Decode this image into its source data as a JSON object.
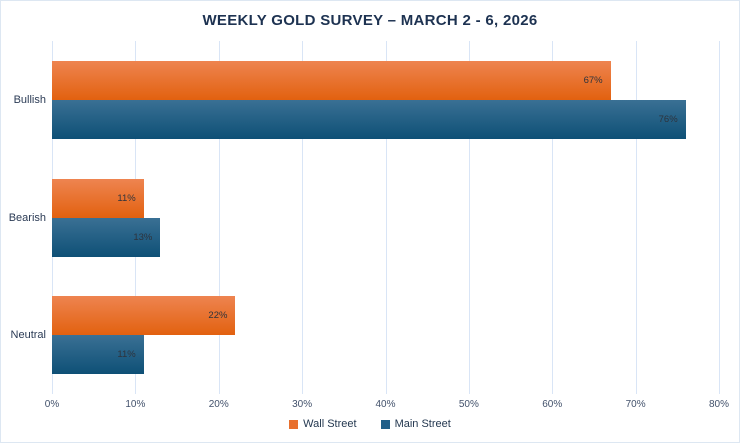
{
  "title": "WEEKLY GOLD SURVEY – MARCH 2 - 6, 2026",
  "chart_data": {
    "type": "bar",
    "orientation": "horizontal",
    "title": "WEEKLY GOLD SURVEY – MARCH 2 - 6, 2026",
    "categories": [
      "Bullish",
      "Bearish",
      "Neutral"
    ],
    "series": [
      {
        "name": "Wall Street",
        "values": [
          67,
          11,
          22
        ],
        "color_top": "#ee8450",
        "color_bottom": "#e2610f",
        "legend_color": "#e8702e"
      },
      {
        "name": "Main Street",
        "values": [
          76,
          13,
          11
        ],
        "color_top": "#3a7094",
        "color_bottom": "#0e5076",
        "legend_color": "#1f5e88"
      }
    ],
    "data_labels": [
      [
        "67%",
        "11%",
        "22%"
      ],
      [
        "76%",
        "13%",
        "11%"
      ]
    ],
    "value_suffix": "%",
    "xlim": [
      0,
      80
    ],
    "x_ticks": [
      "0%",
      "10%",
      "20%",
      "30%",
      "40%",
      "50%",
      "60%",
      "70%",
      "80%"
    ],
    "grid": "vertical-gridlines",
    "legend_position": "bottom"
  },
  "colors": {
    "background": "#ffffff",
    "border": "#dde7f2",
    "title_text": "#1d3251",
    "category_label_text": "#2b3b55",
    "tick_label_text": "#42516b",
    "data_label_text": "#2e333c",
    "gridline": "#d9e5f6"
  }
}
